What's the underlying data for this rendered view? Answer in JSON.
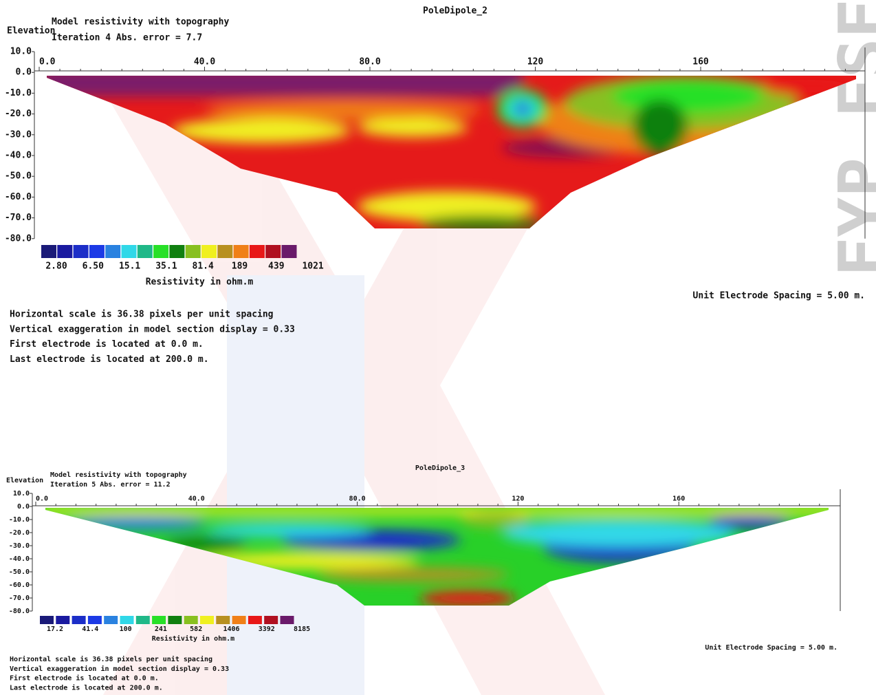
{
  "watermark": "FYP FSE",
  "panels": [
    {
      "title": "PoleDipole_2",
      "elevation_label": "Elevation",
      "subtitle": [
        "Model resistivity with topography",
        "Iteration 4 Abs. error = 7.7"
      ],
      "x_ticks": [
        "0.0",
        "40.0",
        "80.0",
        "120",
        "160"
      ],
      "y_ticks": [
        "10.0",
        "0.0",
        "-10.0",
        "-20.0",
        "-30.0",
        "-40.0",
        "-50.0",
        "-60.0",
        "-70.0",
        "-80.0"
      ],
      "legend_colors": [
        "#1a1a78",
        "#1a1aa0",
        "#1c2ec8",
        "#1c3ae6",
        "#2a82e0",
        "#30d8e8",
        "#20b888",
        "#28e028",
        "#108010",
        "#88c020",
        "#f0f020",
        "#b89020",
        "#f08018",
        "#e81818",
        "#b01020",
        "#6a1a6a"
      ],
      "legend_labels": [
        "2.80",
        "6.50",
        "15.1",
        "35.1",
        "81.4",
        "189",
        "439",
        "1021"
      ],
      "legend_title": "Resistivity in ohm.m",
      "electrode_spacing": "Unit Electrode Spacing = 5.00 m.",
      "notes": [
        "Horizontal scale is 36.38 pixels per unit spacing",
        "Vertical exaggeration in model section display = 0.33",
        "First electrode is located at 0.0  m.",
        "Last electrode is located at 200.0 m."
      ]
    },
    {
      "title": "PoleDipole_3",
      "elevation_label": "Elevation",
      "subtitle": [
        "Model resistivity with topography",
        "Iteration 5 Abs. error = 11.2"
      ],
      "x_ticks": [
        "0.0",
        "40.0",
        "80.0",
        "120",
        "160"
      ],
      "y_ticks": [
        "10.0",
        "0.0",
        "-10.0",
        "-20.0",
        "-30.0",
        "-40.0",
        "-50.0",
        "-60.0",
        "-70.0",
        "-80.0"
      ],
      "legend_colors": [
        "#1a1a78",
        "#1a1aa0",
        "#1c2ec8",
        "#1c3ae6",
        "#2a82e0",
        "#30d8e8",
        "#20b888",
        "#28e028",
        "#108010",
        "#88c020",
        "#f0f020",
        "#b89020",
        "#f08018",
        "#e81818",
        "#b01020",
        "#6a1a6a"
      ],
      "legend_labels": [
        "17.2",
        "41.4",
        "100",
        "241",
        "582",
        "1406",
        "3392",
        "8185"
      ],
      "legend_title": "Resistivity in ohm.m",
      "electrode_spacing": "Unit Electrode Spacing = 5.00 m.",
      "notes": [
        "Horizontal scale is 36.38 pixels per unit spacing",
        "Vertical exaggeration in model section display = 0.33",
        "First electrode is located at 0.0  m.",
        "Last electrode is located at 200.0 m."
      ]
    }
  ]
}
